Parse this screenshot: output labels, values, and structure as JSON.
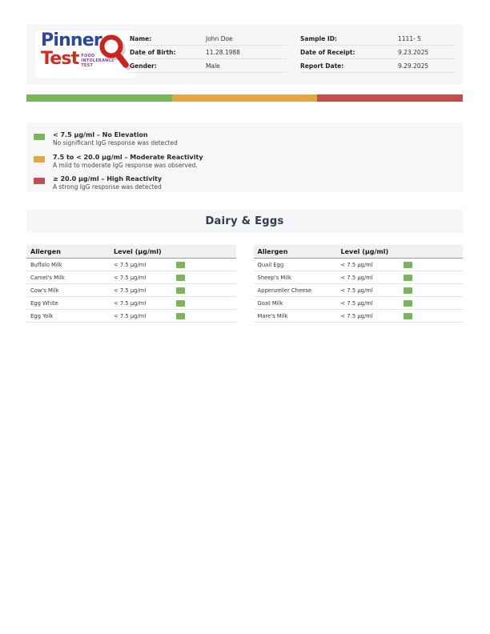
{
  "logo": {
    "word1": "Pinner",
    "word2": "Test",
    "tagline": [
      "FOOD",
      "INTOLERANCE",
      "TEST"
    ]
  },
  "header": {
    "patient_fields": [
      {
        "label": "Name:",
        "value": "John Doe"
      },
      {
        "label": "Date of Birth:",
        "value": "11.28.1988"
      },
      {
        "label": "Gender:",
        "value": "Male"
      }
    ],
    "sample_fields": [
      {
        "label": "Sample ID:",
        "value": "1111- 5"
      },
      {
        "label": "Date of Receipt:",
        "value": "9.23.2025"
      },
      {
        "label": "Report Date:",
        "value": "9.29.2025"
      }
    ]
  },
  "scale_bar": {
    "colors": [
      "#79b55b",
      "#e0a845",
      "#c0504d"
    ]
  },
  "legend": {
    "items": [
      {
        "color": "#79b55b",
        "title": "< 7.5 µg/ml – No Elevation",
        "desc": "No significant IgG response was detected"
      },
      {
        "color": "#e0a845",
        "title": "7.5 to < 20.0 µg/ml – Moderate Reactivity",
        "desc": "A mild to moderate IgG response was observed."
      },
      {
        "color": "#c0504d",
        "title": "≥ 20.0 µg/ml – High Reactivity",
        "desc": "A strong IgG response was detected"
      }
    ]
  },
  "section": {
    "title": "Dairy & Eggs"
  },
  "table": {
    "headers": {
      "allergen": "Allergen",
      "level": "Level (µg/ml)"
    },
    "status_colors": {
      "no_elevation": "#79b55b"
    },
    "columns": [
      {
        "rows": [
          {
            "allergen": "Buffalo Milk",
            "level": "< 7.5 µg/ml",
            "status": "no_elevation"
          },
          {
            "allergen": "Camel's Milk",
            "level": "< 7.5 µg/ml",
            "status": "no_elevation"
          },
          {
            "allergen": "Cow's Milk",
            "level": "< 7.5 µg/ml",
            "status": "no_elevation"
          },
          {
            "allergen": "Egg White",
            "level": "< 7.5 µg/ml",
            "status": "no_elevation"
          },
          {
            "allergen": "Egg Yolk",
            "level": "< 7.5 µg/ml",
            "status": "no_elevation"
          }
        ]
      },
      {
        "rows": [
          {
            "allergen": "Quail Egg",
            "level": "< 7.5 µg/ml",
            "status": "no_elevation"
          },
          {
            "allergen": "Sheep's Milk",
            "level": "< 7.5 µg/ml",
            "status": "no_elevation"
          },
          {
            "allergen": "Appenzeller Cheese",
            "level": "< 7.5 µg/ml",
            "status": "no_elevation"
          },
          {
            "allergen": "Goat Milk",
            "level": "< 7.5 µg/ml",
            "status": "no_elevation"
          },
          {
            "allergen": "Mare's Milk",
            "level": "< 7.5 µg/ml",
            "status": "no_elevation"
          }
        ]
      }
    ]
  }
}
